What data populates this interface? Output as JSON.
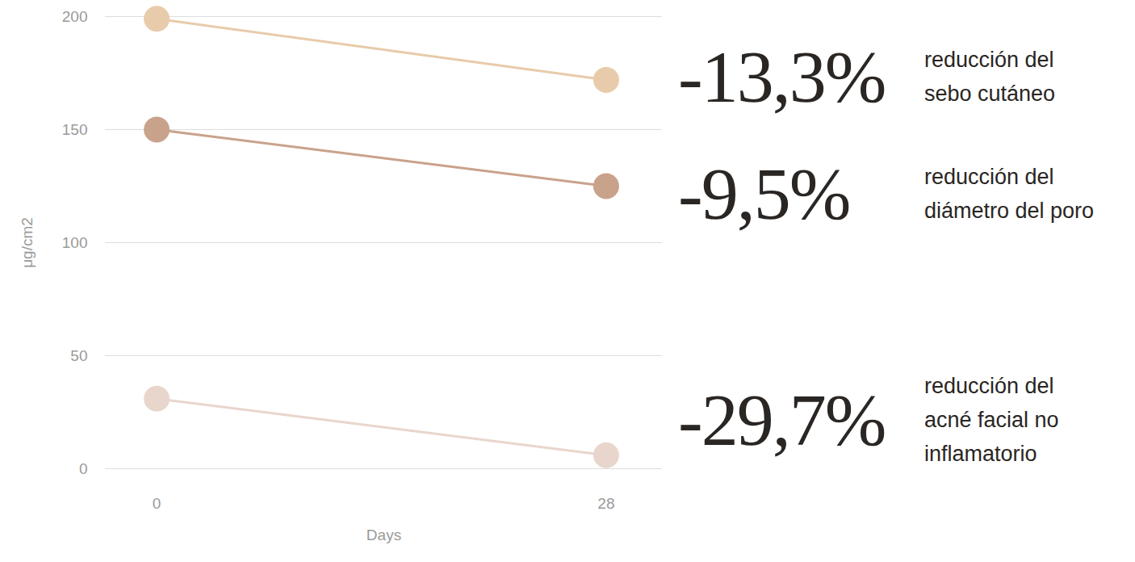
{
  "chart_data": {
    "type": "line",
    "x": [
      0,
      28
    ],
    "xlim": [
      -3.2,
      31.5
    ],
    "xticks": [
      0,
      28
    ],
    "x_label": "Days",
    "ylim": [
      0,
      200
    ],
    "yticks": [
      0,
      50,
      100,
      150,
      200
    ],
    "y_label": "μg/cm2",
    "grid": true,
    "marker": "circle",
    "series": [
      {
        "color": "#e8cbaa",
        "values": [
          199,
          172
        ]
      },
      {
        "color": "#c9a28c",
        "values": [
          150,
          125
        ]
      },
      {
        "color": "#e8d6cd",
        "values": [
          31,
          6
        ]
      }
    ],
    "annotations": [
      {
        "text": "-13,3%",
        "label": [
          "reducción del",
          "sebo cutáneo"
        ]
      },
      {
        "text": "-9,5%",
        "label": [
          "reducción del",
          "diámetro del poro"
        ]
      },
      {
        "text": "-29,7%",
        "label": [
          "reducción del",
          "acné facial no",
          "inflamatorio"
        ]
      }
    ]
  }
}
